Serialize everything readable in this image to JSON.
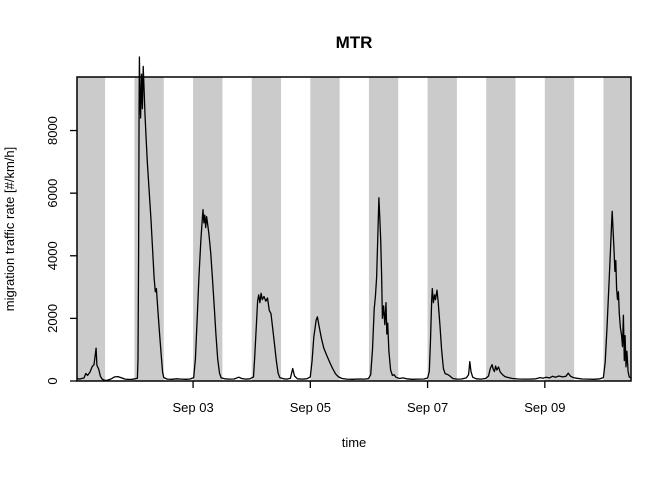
{
  "chart_data": {
    "type": "line",
    "title": "MTR",
    "xlabel": "time",
    "ylabel": "migration traffic rate [#/km/h]",
    "grid": false,
    "legend": "none",
    "x_unit": "days since Sep 01 00:00",
    "xlim": [
      0.02,
      9.47
    ],
    "ylim_box": [
      0,
      9710
    ],
    "yticks": [
      0,
      2000,
      4000,
      6000,
      8000
    ],
    "xticks": [
      {
        "t": 2,
        "label": "Sep 03"
      },
      {
        "t": 4,
        "label": "Sep 05"
      },
      {
        "t": 6,
        "label": "Sep 07"
      },
      {
        "t": 8,
        "label": "Sep 09"
      }
    ],
    "band_color": "#cbcbcb",
    "line_color": "#000000",
    "night_bands": [
      [
        0,
        0.5
      ],
      [
        1,
        1.5
      ],
      [
        2,
        2.5
      ],
      [
        3,
        3.5
      ],
      [
        4,
        4.5
      ],
      [
        5,
        5.5
      ],
      [
        6,
        6.5
      ],
      [
        7,
        7.5
      ],
      [
        8,
        8.5
      ],
      [
        9,
        9.5
      ]
    ],
    "series": [
      {
        "name": "MTR",
        "points": [
          [
            0.02,
            85
          ],
          [
            0.06,
            60
          ],
          [
            0.1,
            80
          ],
          [
            0.14,
            95
          ],
          [
            0.17,
            240
          ],
          [
            0.2,
            180
          ],
          [
            0.24,
            280
          ],
          [
            0.28,
            460
          ],
          [
            0.31,
            520
          ],
          [
            0.345,
            1050
          ],
          [
            0.36,
            500
          ],
          [
            0.39,
            380
          ],
          [
            0.42,
            150
          ],
          [
            0.45,
            60
          ],
          [
            0.48,
            25
          ],
          [
            0.53,
            20
          ],
          [
            0.6,
            65
          ],
          [
            0.66,
            130
          ],
          [
            0.72,
            140
          ],
          [
            0.78,
            100
          ],
          [
            0.84,
            60
          ],
          [
            0.9,
            50
          ],
          [
            0.96,
            55
          ],
          [
            1.01,
            70
          ],
          [
            1.05,
            90
          ],
          [
            1.06,
            700
          ],
          [
            1.07,
            4000
          ],
          [
            1.08,
            8800
          ],
          [
            1.085,
            10350
          ],
          [
            1.095,
            9100
          ],
          [
            1.105,
            8400
          ],
          [
            1.12,
            9800
          ],
          [
            1.135,
            8700
          ],
          [
            1.15,
            10050
          ],
          [
            1.165,
            9300
          ],
          [
            1.18,
            8500
          ],
          [
            1.2,
            7700
          ],
          [
            1.22,
            7000
          ],
          [
            1.25,
            6100
          ],
          [
            1.28,
            5200
          ],
          [
            1.31,
            4200
          ],
          [
            1.335,
            3300
          ],
          [
            1.355,
            2850
          ],
          [
            1.375,
            2950
          ],
          [
            1.4,
            2250
          ],
          [
            1.43,
            1450
          ],
          [
            1.46,
            750
          ],
          [
            1.48,
            280
          ],
          [
            1.5,
            110
          ],
          [
            1.56,
            60
          ],
          [
            1.64,
            55
          ],
          [
            1.72,
            70
          ],
          [
            1.8,
            60
          ],
          [
            1.88,
            55
          ],
          [
            1.95,
            65
          ],
          [
            2.01,
            110
          ],
          [
            2.04,
            700
          ],
          [
            2.07,
            2000
          ],
          [
            2.1,
            3300
          ],
          [
            2.13,
            4400
          ],
          [
            2.15,
            5000
          ],
          [
            2.17,
            5470
          ],
          [
            2.185,
            5050
          ],
          [
            2.2,
            5300
          ],
          [
            2.215,
            4900
          ],
          [
            2.23,
            5250
          ],
          [
            2.25,
            5000
          ],
          [
            2.27,
            4700
          ],
          [
            2.3,
            4100
          ],
          [
            2.33,
            3300
          ],
          [
            2.36,
            2400
          ],
          [
            2.39,
            1500
          ],
          [
            2.42,
            700
          ],
          [
            2.45,
            250
          ],
          [
            2.48,
            100
          ],
          [
            2.54,
            70
          ],
          [
            2.62,
            60
          ],
          [
            2.7,
            65
          ],
          [
            2.78,
            120
          ],
          [
            2.83,
            80
          ],
          [
            2.9,
            60
          ],
          [
            2.97,
            70
          ],
          [
            3.03,
            130
          ],
          [
            3.05,
            700
          ],
          [
            3.08,
            1800
          ],
          [
            3.1,
            2550
          ],
          [
            3.12,
            2750
          ],
          [
            3.14,
            2500
          ],
          [
            3.16,
            2800
          ],
          [
            3.18,
            2600
          ],
          [
            3.21,
            2700
          ],
          [
            3.24,
            2550
          ],
          [
            3.27,
            2650
          ],
          [
            3.3,
            2250
          ],
          [
            3.33,
            2150
          ],
          [
            3.36,
            1650
          ],
          [
            3.39,
            1150
          ],
          [
            3.42,
            650
          ],
          [
            3.45,
            250
          ],
          [
            3.48,
            110
          ],
          [
            3.54,
            70
          ],
          [
            3.6,
            60
          ],
          [
            3.66,
            85
          ],
          [
            3.7,
            400
          ],
          [
            3.73,
            160
          ],
          [
            3.78,
            70
          ],
          [
            3.86,
            60
          ],
          [
            3.94,
            70
          ],
          [
            4.0,
            130
          ],
          [
            4.03,
            650
          ],
          [
            4.06,
            1400
          ],
          [
            4.1,
            1950
          ],
          [
            4.12,
            2050
          ],
          [
            4.15,
            1750
          ],
          [
            4.19,
            1350
          ],
          [
            4.23,
            1050
          ],
          [
            4.28,
            820
          ],
          [
            4.33,
            600
          ],
          [
            4.38,
            400
          ],
          [
            4.43,
            230
          ],
          [
            4.48,
            130
          ],
          [
            4.54,
            80
          ],
          [
            4.62,
            60
          ],
          [
            4.72,
            55
          ],
          [
            4.82,
            65
          ],
          [
            4.92,
            60
          ],
          [
            4.99,
            75
          ],
          [
            5.03,
            200
          ],
          [
            5.06,
            1000
          ],
          [
            5.09,
            2300
          ],
          [
            5.11,
            2700
          ],
          [
            5.13,
            3300
          ],
          [
            5.15,
            4500
          ],
          [
            5.17,
            5850
          ],
          [
            5.185,
            5200
          ],
          [
            5.2,
            4500
          ],
          [
            5.215,
            3400
          ],
          [
            5.23,
            2000
          ],
          [
            5.25,
            2400
          ],
          [
            5.27,
            1800
          ],
          [
            5.29,
            2500
          ],
          [
            5.305,
            1500
          ],
          [
            5.32,
            1850
          ],
          [
            5.34,
            950
          ],
          [
            5.37,
            350
          ],
          [
            5.4,
            180
          ],
          [
            5.43,
            200
          ],
          [
            5.46,
            120
          ],
          [
            5.52,
            80
          ],
          [
            5.58,
            100
          ],
          [
            5.64,
            70
          ],
          [
            5.74,
            55
          ],
          [
            5.84,
            60
          ],
          [
            5.94,
            65
          ],
          [
            6.0,
            95
          ],
          [
            6.03,
            300
          ],
          [
            6.05,
            1300
          ],
          [
            6.07,
            2600
          ],
          [
            6.08,
            2950
          ],
          [
            6.1,
            2500
          ],
          [
            6.12,
            2750
          ],
          [
            6.135,
            2600
          ],
          [
            6.16,
            2900
          ],
          [
            6.18,
            2550
          ],
          [
            6.21,
            1800
          ],
          [
            6.24,
            1000
          ],
          [
            6.27,
            400
          ],
          [
            6.3,
            230
          ],
          [
            6.34,
            210
          ],
          [
            6.38,
            160
          ],
          [
            6.43,
            80
          ],
          [
            6.5,
            60
          ],
          [
            6.58,
            65
          ],
          [
            6.66,
            100
          ],
          [
            6.7,
            200
          ],
          [
            6.72,
            620
          ],
          [
            6.74,
            300
          ],
          [
            6.77,
            120
          ],
          [
            6.83,
            70
          ],
          [
            6.91,
            60
          ],
          [
            6.99,
            80
          ],
          [
            7.04,
            160
          ],
          [
            7.07,
            400
          ],
          [
            7.1,
            520
          ],
          [
            7.12,
            380
          ],
          [
            7.14,
            300
          ],
          [
            7.16,
            480
          ],
          [
            7.18,
            350
          ],
          [
            7.21,
            450
          ],
          [
            7.24,
            280
          ],
          [
            7.28,
            200
          ],
          [
            7.32,
            140
          ],
          [
            7.38,
            110
          ],
          [
            7.45,
            80
          ],
          [
            7.55,
            65
          ],
          [
            7.65,
            60
          ],
          [
            7.75,
            60
          ],
          [
            7.85,
            70
          ],
          [
            7.92,
            110
          ],
          [
            7.97,
            85
          ],
          [
            8.02,
            120
          ],
          [
            8.08,
            100
          ],
          [
            8.13,
            150
          ],
          [
            8.18,
            120
          ],
          [
            8.24,
            160
          ],
          [
            8.3,
            130
          ],
          [
            8.36,
            150
          ],
          [
            8.4,
            250
          ],
          [
            8.44,
            150
          ],
          [
            8.49,
            110
          ],
          [
            8.55,
            85
          ],
          [
            8.64,
            65
          ],
          [
            8.74,
            60
          ],
          [
            8.84,
            55
          ],
          [
            8.94,
            70
          ],
          [
            9.0,
            110
          ],
          [
            9.03,
            600
          ],
          [
            9.06,
            1700
          ],
          [
            9.09,
            2900
          ],
          [
            9.12,
            4200
          ],
          [
            9.14,
            5100
          ],
          [
            9.15,
            5420
          ],
          [
            9.165,
            4800
          ],
          [
            9.18,
            4200
          ],
          [
            9.195,
            3500
          ],
          [
            9.21,
            3850
          ],
          [
            9.225,
            2950
          ],
          [
            9.24,
            2600
          ],
          [
            9.255,
            2850
          ],
          [
            9.27,
            2150
          ],
          [
            9.29,
            1700
          ],
          [
            9.31,
            1450
          ],
          [
            9.325,
            1100
          ],
          [
            9.34,
            2100
          ],
          [
            9.355,
            650
          ],
          [
            9.37,
            1450
          ],
          [
            9.385,
            450
          ],
          [
            9.4,
            950
          ],
          [
            9.42,
            300
          ],
          [
            9.44,
            130
          ],
          [
            9.47,
            100
          ]
        ]
      }
    ]
  }
}
